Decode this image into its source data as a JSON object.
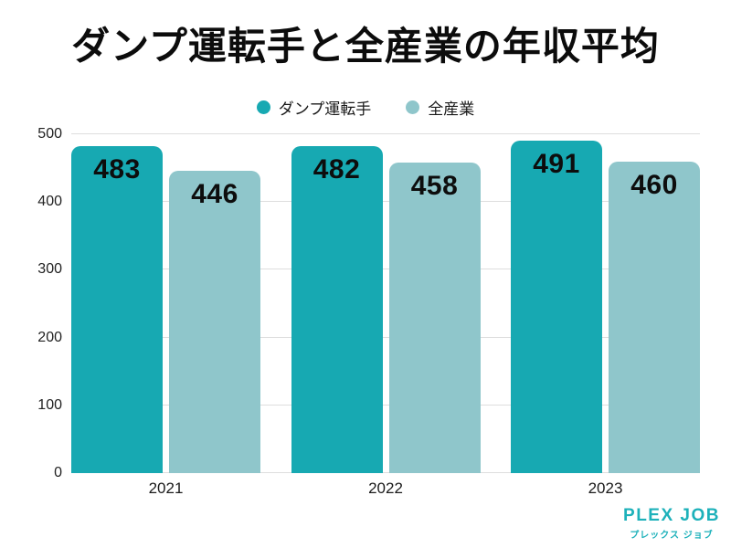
{
  "title": "ダンプ運転手と全産業の年収平均",
  "chart_data": {
    "type": "bar",
    "categories": [
      "2021",
      "2022",
      "2023"
    ],
    "series": [
      {
        "name": "ダンプ運転手",
        "color": "#17a9b2",
        "values": [
          483,
          482,
          491
        ]
      },
      {
        "name": "全産業",
        "color": "#8fc6cb",
        "values": [
          446,
          458,
          460
        ]
      }
    ],
    "ylim": [
      0,
      500
    ],
    "yticks": [
      0,
      100,
      200,
      300,
      400,
      500
    ],
    "grid": true,
    "legend_position": "top-center",
    "value_label_position": "inside-top"
  },
  "colors": {
    "background": "#ffffff",
    "gridline": "#dedede",
    "text": "#0c0c0c"
  },
  "logo": {
    "name": "PLEX JOB",
    "subtitle": "プレックス ジョブ",
    "color": "#1db1ba"
  }
}
